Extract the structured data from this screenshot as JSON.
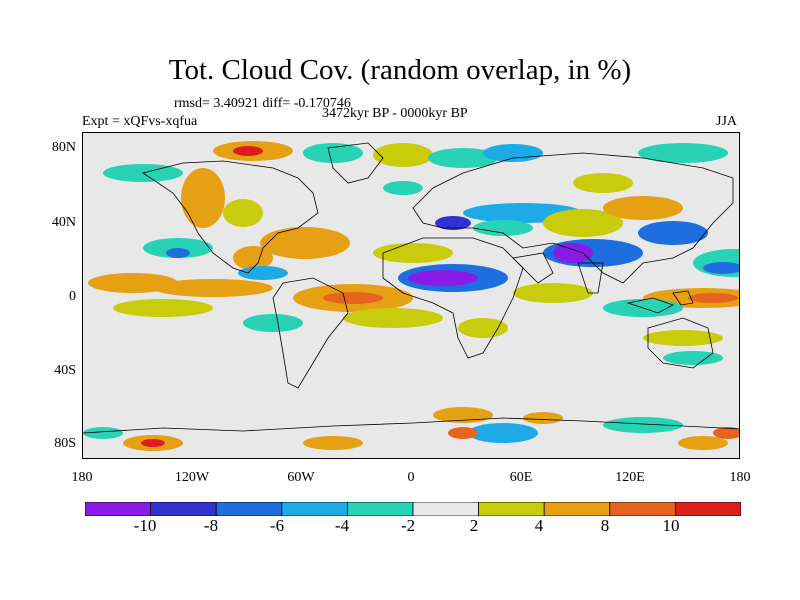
{
  "title": "Tot. Cloud Cov. (random overlap, in %)",
  "stats_text": "rmsd= 3.40921 diff= -0.170746",
  "period": "3472kyr BP - 0000kyr BP",
  "experiment": "Expt = xQFvs-xqfua",
  "season": "JJA",
  "lat_labels": [
    "80N",
    "40N",
    "0",
    "40S",
    "80S"
  ],
  "lon_labels": [
    "180",
    "120W",
    "60W",
    "0",
    "60E",
    "120E",
    "180"
  ],
  "colorbar": {
    "labels": [
      "-10",
      "-8",
      "-6",
      "-4",
      "-2",
      "2",
      "4",
      "8",
      "10"
    ],
    "colors": [
      "#8a1ae6",
      "#3232d2",
      "#1e6ee0",
      "#1eaae6",
      "#28d2b4",
      "#e8e8e8",
      "#c8cc0a",
      "#e6a014",
      "#e6641e",
      "#dc1e1e"
    ]
  },
  "map_colors": {
    "background": "#e8e8e8",
    "land_outline": "#000000"
  }
}
